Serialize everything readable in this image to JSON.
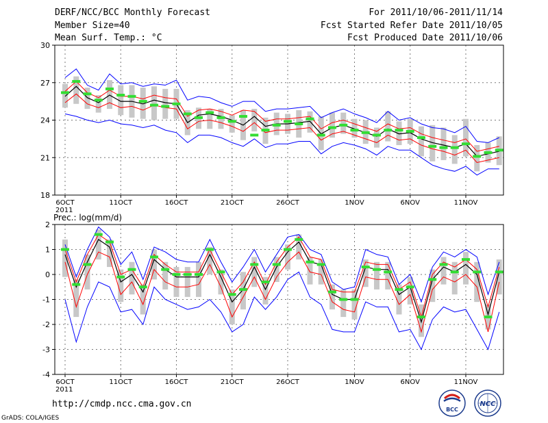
{
  "header": {
    "title": "DERF/NCC/BCC Monthly Forecast",
    "member_size": "Member Size=40",
    "variable": "Mean Surf. Temp.: °C",
    "period": "For 2011/10/06-2011/11/14",
    "started": "Fcst Started Refer Date 2011/10/05",
    "produced": "Fcst Produced Date 2011/10/06"
  },
  "footer": {
    "url": "http://cmdp.ncc.cma.gov.cn",
    "grads": "GrADS: COLA/IGES",
    "logo_left": "BCC",
    "logo_right": "NCC"
  },
  "colors": {
    "ensemble_mean": "#000000",
    "plus_minus_std": "#ff0000",
    "max_min": "#0000ff",
    "member_spread": "#c8c8c8",
    "marker": "#33dd33"
  },
  "chart_data": [
    {
      "type": "line",
      "title": "Mean Surf. Temp.: °C",
      "xlabel": "",
      "ylabel": "",
      "x_days": 40,
      "x_ticks": [
        "6OCT",
        "11OCT",
        "16OCT",
        "21OCT",
        "26OCT",
        "1NOV",
        "6NOV",
        "11NOV"
      ],
      "x_tick_days": [
        1,
        6,
        11,
        16,
        21,
        27,
        32,
        37
      ],
      "x_year": "2011",
      "ylim": [
        18,
        30
      ],
      "yticks": [
        18,
        21,
        24,
        27,
        30
      ],
      "grid": true,
      "series": [
        {
          "name": "ensemble mean",
          "values": [
            25.9,
            26.7,
            25.8,
            25.4,
            26.0,
            25.5,
            25.5,
            25.3,
            25.6,
            25.4,
            25.3,
            23.8,
            24.4,
            24.5,
            24.3,
            24.0,
            23.6,
            24.3,
            23.5,
            23.7,
            23.7,
            23.8,
            23.9,
            22.9,
            23.4,
            23.6,
            23.3,
            23.0,
            22.7,
            23.3,
            22.9,
            23.0,
            22.5,
            22.2,
            22.0,
            21.8,
            22.1,
            21.1,
            21.3,
            21.5
          ]
        },
        {
          "name": "mean + std",
          "values": [
            26.3,
            27.1,
            26.2,
            25.8,
            26.4,
            25.9,
            25.9,
            25.7,
            26.0,
            25.8,
            25.7,
            24.3,
            24.8,
            24.9,
            24.7,
            24.4,
            24.8,
            24.7,
            23.9,
            24.1,
            24.1,
            24.2,
            24.3,
            23.3,
            23.8,
            24.0,
            23.7,
            23.4,
            23.1,
            23.7,
            23.3,
            23.4,
            22.9,
            22.6,
            22.4,
            22.2,
            22.5,
            21.5,
            21.7,
            21.9
          ]
        },
        {
          "name": "mean - std",
          "values": [
            25.4,
            26.1,
            25.3,
            25.0,
            25.4,
            25.0,
            25.1,
            24.8,
            25.2,
            25.0,
            24.9,
            23.3,
            23.9,
            24.0,
            23.8,
            23.5,
            23.1,
            23.8,
            23.0,
            23.2,
            23.2,
            23.3,
            23.4,
            22.4,
            22.9,
            23.1,
            22.8,
            22.5,
            22.2,
            22.8,
            22.4,
            22.5,
            22.0,
            21.7,
            21.5,
            21.2,
            21.6,
            20.6,
            20.8,
            21.0
          ]
        },
        {
          "name": "maximum",
          "values": [
            27.4,
            28.1,
            26.8,
            26.4,
            27.7,
            26.9,
            27.0,
            26.7,
            26.9,
            26.8,
            27.2,
            25.6,
            25.9,
            25.8,
            25.4,
            25.1,
            25.5,
            25.5,
            24.7,
            24.9,
            24.9,
            25.0,
            25.1,
            24.2,
            24.6,
            24.9,
            24.5,
            24.2,
            23.8,
            24.7,
            24.0,
            24.2,
            23.7,
            23.4,
            23.3,
            23.0,
            23.5,
            22.3,
            22.2,
            22.6
          ]
        },
        {
          "name": "minimum",
          "values": [
            24.5,
            24.3,
            24.0,
            23.8,
            24.0,
            23.7,
            23.6,
            23.4,
            23.6,
            23.2,
            23.0,
            22.2,
            22.8,
            22.8,
            22.6,
            22.2,
            21.9,
            22.5,
            21.8,
            22.1,
            22.1,
            22.3,
            22.3,
            21.3,
            21.9,
            22.2,
            22.0,
            21.7,
            21.2,
            21.9,
            21.6,
            21.6,
            21.0,
            20.4,
            20.1,
            19.9,
            20.3,
            19.6,
            20.1,
            20.1
          ]
        },
        {
          "name": "member spread high",
          "values": [
            26.9,
            27.5,
            26.6,
            26.0,
            27.2,
            26.8,
            26.8,
            26.6,
            26.7,
            26.5,
            26.5,
            24.8,
            25.0,
            24.9,
            24.9,
            24.4,
            24.8,
            24.9,
            24.2,
            24.6,
            24.5,
            24.8,
            24.7,
            24.3,
            24.6,
            24.6,
            24.1,
            24.0,
            23.4,
            24.7,
            23.9,
            24.1,
            23.5,
            23.6,
            23.4,
            22.8,
            24.1,
            22.0,
            22.2,
            22.7
          ]
        },
        {
          "name": "member spread low",
          "values": [
            25.0,
            25.3,
            24.9,
            24.6,
            24.9,
            24.4,
            24.2,
            24.1,
            24.0,
            24.1,
            24.1,
            22.8,
            23.3,
            23.3,
            23.3,
            23.0,
            22.4,
            23.1,
            22.1,
            22.8,
            22.9,
            22.6,
            23.0,
            21.6,
            22.6,
            22.9,
            22.6,
            22.1,
            21.8,
            22.3,
            22.0,
            22.1,
            21.1,
            20.7,
            20.8,
            20.5,
            21.1,
            19.9,
            20.6,
            20.4
          ]
        },
        {
          "name": "markers",
          "values": [
            26.2,
            27.1,
            26.1,
            25.6,
            26.5,
            26.0,
            25.9,
            25.5,
            25.2,
            25.1,
            25.3,
            24.5,
            24.2,
            24.6,
            24.2,
            23.9,
            24.3,
            22.8,
            23.2,
            23.6,
            23.9,
            23.7,
            24.1,
            22.8,
            23.4,
            23.6,
            23.2,
            23.0,
            22.8,
            23.2,
            23.2,
            23.1,
            22.6,
            21.9,
            21.8,
            21.8,
            22.1,
            21.1,
            21.4,
            21.6
          ]
        }
      ]
    },
    {
      "type": "line",
      "title": "Prec.: log(mm/d)",
      "xlabel": "",
      "ylabel": "",
      "x_days": 40,
      "x_ticks": [
        "6OCT",
        "11OCT",
        "16OCT",
        "21OCT",
        "26OCT",
        "1NOV",
        "6NOV",
        "11NOV"
      ],
      "x_tick_days": [
        1,
        6,
        11,
        16,
        21,
        27,
        32,
        37
      ],
      "x_year": "2011",
      "ylim": [
        -4,
        2
      ],
      "yticks": [
        -4,
        -3,
        -2,
        -1,
        0,
        1,
        2
      ],
      "grid": true,
      "series": [
        {
          "name": "ensemble mean",
          "values": [
            0.8,
            -0.5,
            0.5,
            1.4,
            1.1,
            -0.3,
            0.0,
            -0.7,
            0.6,
            0.2,
            -0.1,
            -0.1,
            -0.1,
            0.8,
            -0.1,
            -1.1,
            -0.6,
            0.3,
            -0.6,
            0.3,
            0.9,
            1.3,
            0.5,
            0.4,
            -0.8,
            -1.0,
            -1.0,
            0.3,
            0.2,
            0.2,
            -0.8,
            -0.5,
            -1.9,
            -0.2,
            0.3,
            0.1,
            0.4,
            0.0,
            -1.6,
            0.1
          ]
        },
        {
          "name": "mean + std",
          "values": [
            1.0,
            -0.3,
            0.8,
            1.6,
            1.3,
            0.0,
            0.2,
            -0.5,
            0.8,
            0.4,
            0.1,
            0.1,
            0.1,
            1.0,
            0.1,
            -0.8,
            -0.3,
            0.5,
            -0.4,
            0.5,
            1.1,
            1.5,
            0.7,
            0.6,
            -0.6,
            -0.7,
            -0.7,
            0.5,
            0.4,
            0.4,
            -0.6,
            -0.3,
            -1.7,
            0.0,
            0.5,
            0.3,
            0.6,
            0.2,
            -1.3,
            0.3
          ]
        },
        {
          "name": "mean - std",
          "values": [
            0.5,
            -1.3,
            0.0,
            0.9,
            0.7,
            -0.8,
            -0.3,
            -1.2,
            0.2,
            -0.3,
            -0.5,
            -0.5,
            -0.4,
            0.4,
            -0.5,
            -1.7,
            -0.9,
            -0.1,
            -1.0,
            -0.1,
            0.5,
            0.9,
            0.1,
            0.0,
            -1.1,
            -1.4,
            -1.5,
            -0.1,
            -0.2,
            -0.2,
            -1.2,
            -0.8,
            -2.3,
            -0.6,
            -0.1,
            -0.3,
            0.0,
            -0.5,
            -2.3,
            -0.3
          ]
        },
        {
          "name": "maximum",
          "values": [
            1.2,
            -0.1,
            1.0,
            1.9,
            1.5,
            0.4,
            0.9,
            -0.2,
            1.1,
            0.9,
            0.6,
            0.5,
            0.5,
            1.4,
            0.5,
            -0.3,
            0.3,
            1.0,
            0.1,
            0.8,
            1.5,
            1.6,
            1.0,
            0.8,
            -0.3,
            -0.6,
            -0.5,
            1.0,
            0.8,
            0.7,
            -0.4,
            0.0,
            -1.1,
            0.3,
            0.9,
            0.7,
            1.0,
            0.7,
            -0.8,
            0.5
          ]
        },
        {
          "name": "minimum",
          "values": [
            -1.0,
            -2.7,
            -1.3,
            -0.3,
            -0.5,
            -1.5,
            -1.4,
            -2.0,
            -0.5,
            -1.0,
            -1.2,
            -1.4,
            -1.3,
            -1.0,
            -1.5,
            -2.3,
            -2.0,
            -0.9,
            -1.4,
            -0.9,
            -0.2,
            0.1,
            -0.9,
            -1.2,
            -2.2,
            -2.3,
            -2.3,
            -1.1,
            -1.3,
            -1.3,
            -2.3,
            -2.2,
            -3.0,
            -1.8,
            -1.3,
            -1.5,
            -1.4,
            -2.2,
            -3.0,
            -1.5
          ]
        },
        {
          "name": "member spread high",
          "values": [
            1.4,
            -0.2,
            0.8,
            1.8,
            1.4,
            0.2,
            0.5,
            -0.4,
            1.0,
            0.5,
            0.3,
            0.3,
            0.5,
            1.1,
            0.2,
            -0.6,
            0.1,
            0.7,
            -0.1,
            0.7,
            1.2,
            1.6,
            0.7,
            0.6,
            -0.4,
            -0.6,
            -0.6,
            0.6,
            0.5,
            0.5,
            -0.4,
            -0.1,
            -1.2,
            0.2,
            0.7,
            0.5,
            0.9,
            0.5,
            -1.2,
            0.6
          ]
        },
        {
          "name": "member spread low",
          "values": [
            -0.1,
            -1.7,
            -0.6,
            0.6,
            0.3,
            -1.1,
            -0.8,
            -1.6,
            -0.2,
            -0.6,
            -0.9,
            -0.9,
            -0.9,
            0.0,
            -0.8,
            -2.0,
            -1.4,
            -0.5,
            -1.2,
            -0.3,
            0.2,
            0.6,
            -0.4,
            -0.4,
            -1.4,
            -1.7,
            -1.8,
            -0.5,
            -0.6,
            -0.6,
            -1.6,
            -1.2,
            -2.5,
            -1.1,
            -0.4,
            -0.8,
            -0.4,
            -1.1,
            -2.2,
            -0.8
          ]
        },
        {
          "name": "markers",
          "values": [
            1.0,
            -0.4,
            0.4,
            1.6,
            1.3,
            -0.1,
            0.2,
            -0.5,
            0.7,
            0.2,
            0.0,
            0.0,
            0.0,
            1.0,
            0.1,
            -0.8,
            -0.6,
            0.4,
            -0.3,
            0.4,
            1.0,
            1.4,
            0.5,
            0.4,
            -0.7,
            -1.0,
            -1.0,
            0.3,
            0.2,
            0.1,
            -0.6,
            -0.5,
            -1.7,
            -0.2,
            0.4,
            0.1,
            0.6,
            0.1,
            -1.7,
            0.1
          ]
        }
      ]
    }
  ]
}
